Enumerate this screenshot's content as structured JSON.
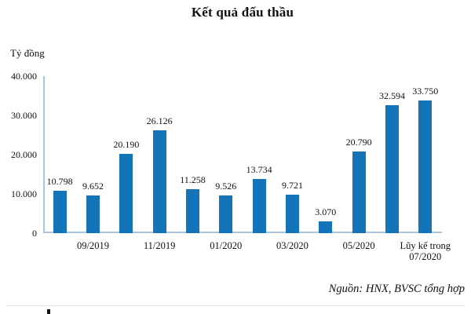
{
  "page": {
    "background": "#ffffff"
  },
  "chart_data": {
    "type": "bar",
    "title": "Kết quả đấu thầu",
    "unit_label": "Tỷ đồng",
    "source_note": "Nguồn: HNX, BVSC tổng hợp",
    "xlabel": "",
    "ylabel": "Tỷ đồng",
    "ylim": [
      0,
      40000
    ],
    "grid": false,
    "legend": null,
    "bar_color": "#1474ba",
    "axis_color": "#a9c6e1",
    "values": [
      10798,
      9652,
      20190,
      26126,
      11258,
      9526,
      13734,
      9721,
      3070,
      20790,
      32594,
      33750
    ],
    "value_labels": [
      "10.798",
      "9.652",
      "20.190",
      "26.126",
      "11.258",
      "9.526",
      "13.734",
      "9.721",
      "3.070",
      "20.790",
      "32.594",
      "33.750"
    ],
    "x_tick_labels": [
      "",
      "09/2019",
      "",
      "11/2019",
      "",
      "01/2020",
      "",
      "03/2020",
      "",
      "05/2020",
      "",
      "Lũy kế trong\n07/2020"
    ],
    "y_ticks": [
      {
        "value": 0,
        "label": "0"
      },
      {
        "value": 10000,
        "label": "10.000"
      },
      {
        "value": 20000,
        "label": "20.000"
      },
      {
        "value": 30000,
        "label": "30.000"
      },
      {
        "value": 40000,
        "label": "40.000"
      }
    ]
  }
}
